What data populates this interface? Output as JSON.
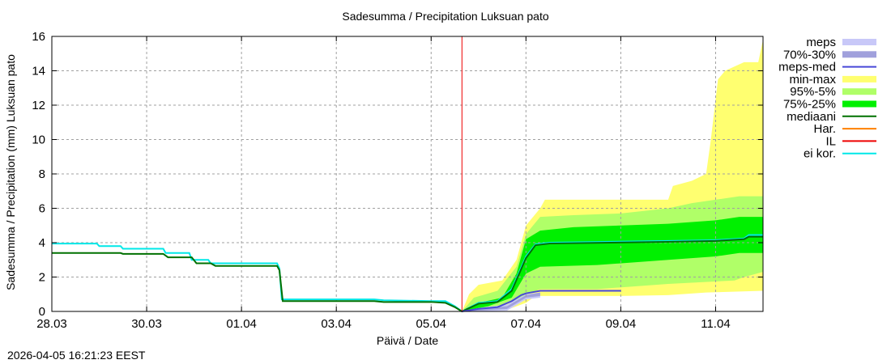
{
  "title": "Sadesumma / Precipitation  Luksuan pato",
  "timestamp": "2026-04-05 16:21:23 EEST",
  "chart_data": {
    "type": "area",
    "title": "Sadesumma / Precipitation  Luksuan pato",
    "xlabel": "Päivä / Date",
    "ylabel": "Sadesumma / Precipitation (mm)  Luksuan pato",
    "ylim": [
      0,
      16
    ],
    "yticks": [
      0,
      2,
      4,
      6,
      8,
      10,
      12,
      14,
      16
    ],
    "xlim_days": [
      0,
      15
    ],
    "xticks": [
      {
        "day": 0,
        "label": "28.03"
      },
      {
        "day": 2,
        "label": "30.03"
      },
      {
        "day": 4,
        "label": "01.04"
      },
      {
        "day": 6,
        "label": "03.04"
      },
      {
        "day": 8,
        "label": "05.04"
      },
      {
        "day": 10,
        "label": "07.04"
      },
      {
        "day": 12,
        "label": "09.04"
      },
      {
        "day": 14,
        "label": "11.04"
      }
    ],
    "grid": true,
    "forecast_start_day": 8.65,
    "legend": [
      {
        "label": "meps",
        "color": "#c8c8f8",
        "style": "band"
      },
      {
        "label": "70%-30%",
        "color": "#a0a0dc",
        "style": "band"
      },
      {
        "label": "meps-med",
        "color": "#4848d8",
        "style": "line"
      },
      {
        "label": "min-max",
        "color": "#ffff70",
        "style": "band"
      },
      {
        "label": "95%-5%",
        "color": "#b0ff68",
        "style": "band"
      },
      {
        "label": "75%-25%",
        "color": "#00f000",
        "style": "band"
      },
      {
        "label": "mediaani",
        "color": "#007000",
        "style": "line"
      },
      {
        "label": "Har.",
        "color": "#ff8000",
        "style": "line"
      },
      {
        "label": "IL",
        "color": "#ee0000",
        "style": "line"
      },
      {
        "label": "ei kor.",
        "color": "#00e8e8",
        "style": "line"
      }
    ],
    "series": [
      {
        "name": "ei kor.",
        "color": "#00e8e8",
        "points": [
          [
            0,
            3.95
          ],
          [
            0.95,
            3.95
          ],
          [
            1.0,
            3.8
          ],
          [
            1.45,
            3.8
          ],
          [
            1.5,
            3.65
          ],
          [
            2.35,
            3.65
          ],
          [
            2.4,
            3.4
          ],
          [
            2.9,
            3.4
          ],
          [
            2.95,
            3.0
          ],
          [
            3.3,
            3.0
          ],
          [
            3.35,
            2.8
          ],
          [
            4.75,
            2.8
          ],
          [
            4.8,
            2.5
          ],
          [
            4.85,
            0.7
          ],
          [
            6.8,
            0.7
          ],
          [
            7.0,
            0.65
          ],
          [
            8.0,
            0.6
          ],
          [
            8.3,
            0.6
          ],
          [
            8.5,
            0.3
          ],
          [
            8.65,
            0.0
          ],
          [
            9.0,
            0.5
          ],
          [
            9.4,
            0.6
          ],
          [
            9.7,
            1.3
          ],
          [
            10.0,
            3.2
          ],
          [
            10.2,
            3.9
          ],
          [
            10.5,
            4.0
          ],
          [
            13.0,
            4.1
          ],
          [
            14.0,
            4.15
          ],
          [
            14.6,
            4.25
          ],
          [
            14.7,
            4.45
          ],
          [
            15.0,
            4.45
          ]
        ]
      },
      {
        "name": "mediaani",
        "color": "#007000",
        "points": [
          [
            0,
            3.4
          ],
          [
            1.45,
            3.4
          ],
          [
            1.5,
            3.35
          ],
          [
            2.35,
            3.35
          ],
          [
            2.45,
            3.15
          ],
          [
            2.95,
            3.15
          ],
          [
            3.05,
            2.8
          ],
          [
            3.35,
            2.8
          ],
          [
            3.45,
            2.65
          ],
          [
            4.75,
            2.65
          ],
          [
            4.8,
            2.4
          ],
          [
            4.87,
            0.6
          ],
          [
            6.8,
            0.6
          ],
          [
            7.0,
            0.55
          ],
          [
            8.0,
            0.55
          ],
          [
            8.3,
            0.5
          ],
          [
            8.5,
            0.25
          ],
          [
            8.65,
            0.0
          ],
          [
            9.0,
            0.45
          ],
          [
            9.4,
            0.55
          ],
          [
            9.7,
            1.2
          ],
          [
            10.0,
            3.1
          ],
          [
            10.2,
            3.85
          ],
          [
            10.5,
            3.95
          ],
          [
            13.0,
            4.05
          ],
          [
            14.0,
            4.1
          ],
          [
            14.6,
            4.2
          ],
          [
            14.7,
            4.35
          ],
          [
            15.0,
            4.35
          ]
        ]
      },
      {
        "name": "meps-med",
        "color": "#4848d8",
        "points": [
          [
            8.65,
            0.0
          ],
          [
            9.0,
            0.15
          ],
          [
            9.4,
            0.25
          ],
          [
            9.7,
            0.6
          ],
          [
            9.9,
            0.95
          ],
          [
            10.0,
            1.05
          ],
          [
            10.3,
            1.2
          ],
          [
            12.0,
            1.2
          ]
        ]
      },
      {
        "name": "IL",
        "color": "#ee0000",
        "points": [
          [
            8.65,
            0
          ],
          [
            8.65,
            16
          ]
        ]
      }
    ],
    "bands": [
      {
        "name": "min-max",
        "color": "#ffff70",
        "upper": [
          [
            8.65,
            0
          ],
          [
            8.8,
            1.0
          ],
          [
            9.0,
            1.55
          ],
          [
            9.5,
            1.8
          ],
          [
            9.8,
            3.0
          ],
          [
            10.0,
            5.0
          ],
          [
            10.3,
            6.0
          ],
          [
            10.4,
            6.5
          ],
          [
            12.0,
            6.5
          ],
          [
            13.0,
            6.5
          ],
          [
            13.1,
            7.3
          ],
          [
            13.5,
            7.6
          ],
          [
            13.8,
            8.0
          ],
          [
            13.9,
            10.0
          ],
          [
            14.05,
            13.5
          ],
          [
            14.2,
            14.0
          ],
          [
            14.6,
            14.5
          ],
          [
            14.9,
            14.5
          ],
          [
            15.0,
            15.8
          ]
        ],
        "lower": [
          [
            8.65,
            0
          ],
          [
            9.0,
            0.05
          ],
          [
            9.6,
            0.1
          ],
          [
            10.0,
            0.5
          ],
          [
            10.2,
            0.9
          ],
          [
            12.0,
            0.9
          ],
          [
            13.0,
            0.95
          ],
          [
            13.8,
            1.1
          ],
          [
            15.0,
            1.2
          ]
        ]
      },
      {
        "name": "95%-5%",
        "color": "#b0ff68",
        "upper": [
          [
            8.65,
            0
          ],
          [
            8.9,
            0.8
          ],
          [
            9.4,
            1.2
          ],
          [
            9.8,
            2.6
          ],
          [
            10.0,
            4.5
          ],
          [
            10.3,
            5.5
          ],
          [
            11.0,
            5.6
          ],
          [
            12.0,
            5.7
          ],
          [
            13.0,
            6.0
          ],
          [
            13.5,
            6.3
          ],
          [
            14.0,
            6.5
          ],
          [
            14.5,
            6.7
          ],
          [
            15.0,
            6.7
          ]
        ],
        "lower": [
          [
            8.65,
            0
          ],
          [
            9.2,
            0.2
          ],
          [
            9.8,
            0.6
          ],
          [
            10.0,
            1.0
          ],
          [
            10.3,
            1.3
          ],
          [
            11.5,
            1.3
          ],
          [
            13.0,
            1.6
          ],
          [
            14.4,
            1.8
          ],
          [
            14.6,
            2.0
          ],
          [
            15.0,
            2.3
          ]
        ]
      },
      {
        "name": "75%-25%",
        "color": "#00f000",
        "upper": [
          [
            8.65,
            0
          ],
          [
            9.0,
            0.5
          ],
          [
            9.5,
            0.8
          ],
          [
            9.8,
            2.2
          ],
          [
            10.0,
            4.2
          ],
          [
            10.3,
            4.7
          ],
          [
            11.0,
            4.9
          ],
          [
            12.0,
            5.0
          ],
          [
            13.0,
            5.1
          ],
          [
            14.0,
            5.3
          ],
          [
            14.5,
            5.5
          ],
          [
            15.0,
            5.5
          ]
        ],
        "lower": [
          [
            8.65,
            0
          ],
          [
            9.2,
            0.3
          ],
          [
            9.7,
            0.8
          ],
          [
            10.0,
            2.2
          ],
          [
            10.3,
            2.6
          ],
          [
            11.5,
            2.7
          ],
          [
            13.0,
            3.0
          ],
          [
            14.0,
            3.2
          ],
          [
            14.5,
            3.4
          ],
          [
            15.0,
            3.4
          ]
        ]
      },
      {
        "name": "meps",
        "color": "#c8c8f8",
        "upper": [
          [
            8.65,
            0
          ],
          [
            9.0,
            0.2
          ],
          [
            9.6,
            0.4
          ],
          [
            10.0,
            1.0
          ],
          [
            10.3,
            1.1
          ],
          [
            10.3,
            1.1
          ]
        ],
        "lower": [
          [
            8.65,
            0
          ],
          [
            9.0,
            0.0
          ],
          [
            9.6,
            0.05
          ],
          [
            10.0,
            0.7
          ],
          [
            10.3,
            0.8
          ],
          [
            10.3,
            0.8
          ]
        ]
      },
      {
        "name": "70%-30%",
        "color": "#a0a0dc",
        "upper": [
          [
            8.65,
            0
          ],
          [
            9.0,
            0.15
          ],
          [
            9.6,
            0.3
          ],
          [
            10.0,
            0.95
          ],
          [
            10.3,
            1.1
          ]
        ],
        "lower": [
          [
            8.65,
            0
          ],
          [
            9.0,
            0.05
          ],
          [
            9.6,
            0.15
          ],
          [
            10.0,
            0.8
          ],
          [
            10.3,
            0.9
          ]
        ]
      }
    ]
  }
}
